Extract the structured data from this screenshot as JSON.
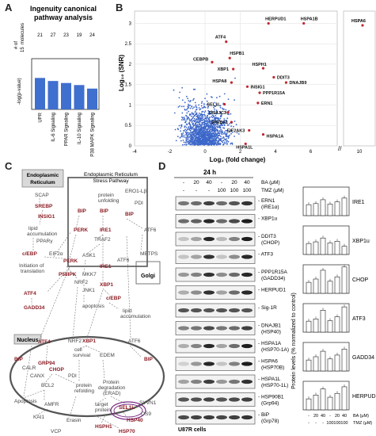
{
  "panelA": {
    "letter": "A",
    "title_line1": "Ingenuity canonical",
    "title_line2": "pathway analysis",
    "counts_label": "# of",
    "counts_label2": "molecules",
    "counts": [
      "21",
      "27",
      "23",
      "19",
      "24"
    ],
    "count_15": "15",
    "ylabel": "-log(p-value)",
    "categories": [
      "UPR",
      "IL-6 Signaling",
      "PPAR Signaling",
      "IL-10 Signaling",
      "P38 MAPK Signaling"
    ]
  },
  "panelB": {
    "letter": "B",
    "ylabel": "Log₁₀ (SNR)",
    "xlabel": "Log₂ (fold change)",
    "yticks": [
      "3",
      "2.5",
      "2",
      "1.5",
      "1",
      "0.5",
      "0"
    ],
    "xticks": [
      "-4",
      "-2",
      "0",
      "2",
      "4",
      "6",
      "10"
    ],
    "genes": [
      "HERPUD1",
      "HSPA1B",
      "HSPA6",
      "ATF4",
      "CEBPB",
      "XBP1",
      "HSPH1",
      "DDIT3",
      "DNAJB9",
      "HSPA8",
      "INSIG1",
      "PPP1R15A",
      "ERN1",
      "SEL1L",
      "DNAJC3",
      "SREBF1",
      "EIF2AK3",
      "HSPA1A",
      "HSPA1L",
      "HSPB1"
    ]
  },
  "panelC": {
    "letter": "C",
    "er_label": "Endoplasmic\nReticulum",
    "er_label_l1": "Endoplasmic",
    "er_label_l2": "Reticulum",
    "box_title_l1": "Endoplasmic Reticulum",
    "box_title_l2": "Stress Pathway",
    "nucleus_label": "Nucleus",
    "golgi_label": "Golgi",
    "nodes_red": [
      "SREBP",
      "INSIG1",
      "BIP",
      "BIP",
      "BIP",
      "c/EBP",
      "PERK",
      "IRE1",
      "P58IPK",
      "PERK",
      "IRE1",
      "XBP1",
      "c/EBP",
      "ATF4",
      "GADD34",
      "ATF4",
      "XBP1",
      "BIP",
      "GRP94",
      "CHOP",
      "BIP",
      "SEL1L",
      "HSP40",
      "HSP70",
      "HSPH1"
    ],
    "nodes_grey": [
      "SCAP",
      "ERO1-Lβ",
      "PDI",
      "protein unfolding",
      "lipid accumulation",
      "PPARγ",
      "EIF2α",
      "Initiation of translation",
      "TRAF2",
      "ATF6",
      "ASK1",
      "MBTPS",
      "NRF2",
      "MKK7",
      "JNK1",
      "apoptosis",
      "lipid accumulation",
      "ATF6",
      "NRF2",
      "cell survival",
      "EDEM",
      "CALR",
      "CANX",
      "PDI",
      "protein refolding",
      "Protein degradation (ERAD)",
      "target protein",
      "BCL2",
      "Apoptosis",
      "AMFR",
      "KAI1",
      "Erasin",
      "VCP",
      "SYVN1",
      "OS9"
    ]
  },
  "panelD": {
    "letter": "D",
    "time_label": "24 h",
    "ba_label": "BA (μM)",
    "tmz_label": "TMZ (μM)",
    "ba_values": [
      "-",
      "20",
      "40",
      "-",
      "20",
      "40"
    ],
    "tmz_values": [
      "-",
      "-",
      "-",
      "100",
      "100",
      "100"
    ],
    "cell_line": "U87R cells",
    "blots": [
      {
        "l1": "ERN1",
        "l2": "(IRE1α)"
      },
      {
        "l1": "XBP1u",
        "l2": ""
      },
      {
        "l1": "DDIT3",
        "l2": "(CHOP)"
      },
      {
        "l1": "ATF3",
        "l2": ""
      },
      {
        "l1": "PPP1R15A",
        "l2": "(GADD34)"
      },
      {
        "l1": "HERPUD1",
        "l2": ""
      },
      {
        "l1": "Sig-1R",
        "l2": ""
      },
      {
        "l1": "DNAJB1",
        "l2": "(HSP40)"
      },
      {
        "l1": "HSPA1A",
        "l2": "(HSP70-1A)"
      },
      {
        "l1": "HSPA6",
        "l2": "(HSP70B)"
      },
      {
        "l1": "HSPA1L",
        "l2": "(HSP70-1L)"
      },
      {
        "l1": "HSP90B1",
        "l2": "(Grp94)"
      },
      {
        "l1": "BiP",
        "l2": "(Grp78)"
      }
    ],
    "bar_ylabel": "Protein levels (% normalized to control)",
    "bar_titles": [
      "IRE1",
      "XBP1u",
      "CHOP",
      "ATF3",
      "GADD34",
      "HERPUD1"
    ],
    "bar_x_ba": [
      "-",
      "20",
      "40",
      "-",
      "20",
      "40"
    ],
    "bar_x_tmz": [
      "-",
      "-",
      "-",
      "100",
      "100",
      "100"
    ],
    "bar_axis_ba": "BA (μM)",
    "bar_axis_tmz": "TMZ (μM)"
  },
  "colors": {
    "bar_blue": "#3f6fcf",
    "scatter_blue": "#3b66c9",
    "highlight_red": "#c0282f",
    "node_red": "#8b1d24"
  }
}
